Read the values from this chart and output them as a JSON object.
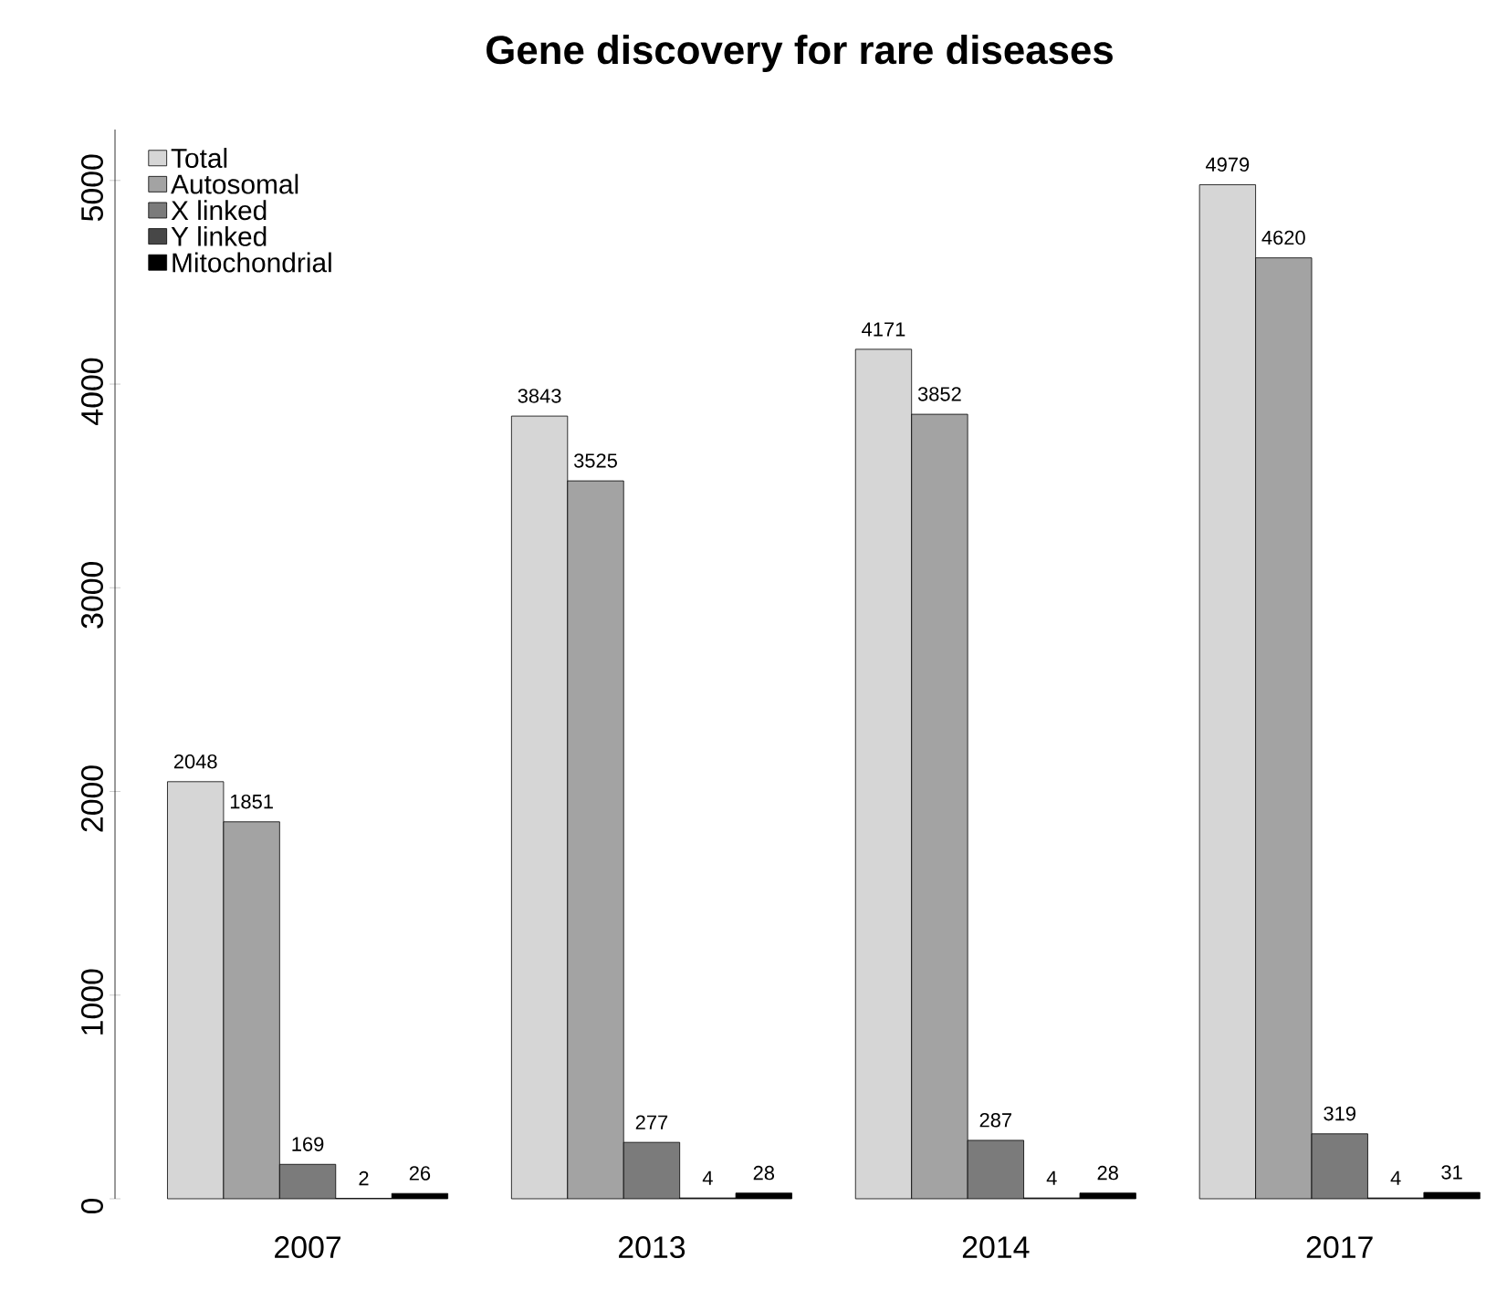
{
  "chart_data": {
    "type": "bar",
    "title": "Gene discovery for rare diseases",
    "categories": [
      "2007",
      "2013",
      "2014",
      "2017"
    ],
    "series": [
      {
        "name": "Total",
        "color": "#d6d6d6",
        "values": [
          2048,
          3843,
          4171,
          4979
        ]
      },
      {
        "name": "Autosomal",
        "color": "#a3a3a3",
        "values": [
          1851,
          3525,
          3852,
          4620
        ]
      },
      {
        "name": "X linked",
        "color": "#7b7b7b",
        "values": [
          169,
          277,
          287,
          319
        ]
      },
      {
        "name": "Y linked",
        "color": "#474747",
        "values": [
          2,
          4,
          4,
          4
        ]
      },
      {
        "name": "Mitochondrial",
        "color": "#000000",
        "values": [
          26,
          28,
          28,
          31
        ]
      }
    ],
    "ylim": [
      0,
      5250
    ],
    "yticks": [
      0,
      1000,
      2000,
      3000,
      4000,
      5000
    ],
    "data_labels": true,
    "legend": "top left"
  }
}
